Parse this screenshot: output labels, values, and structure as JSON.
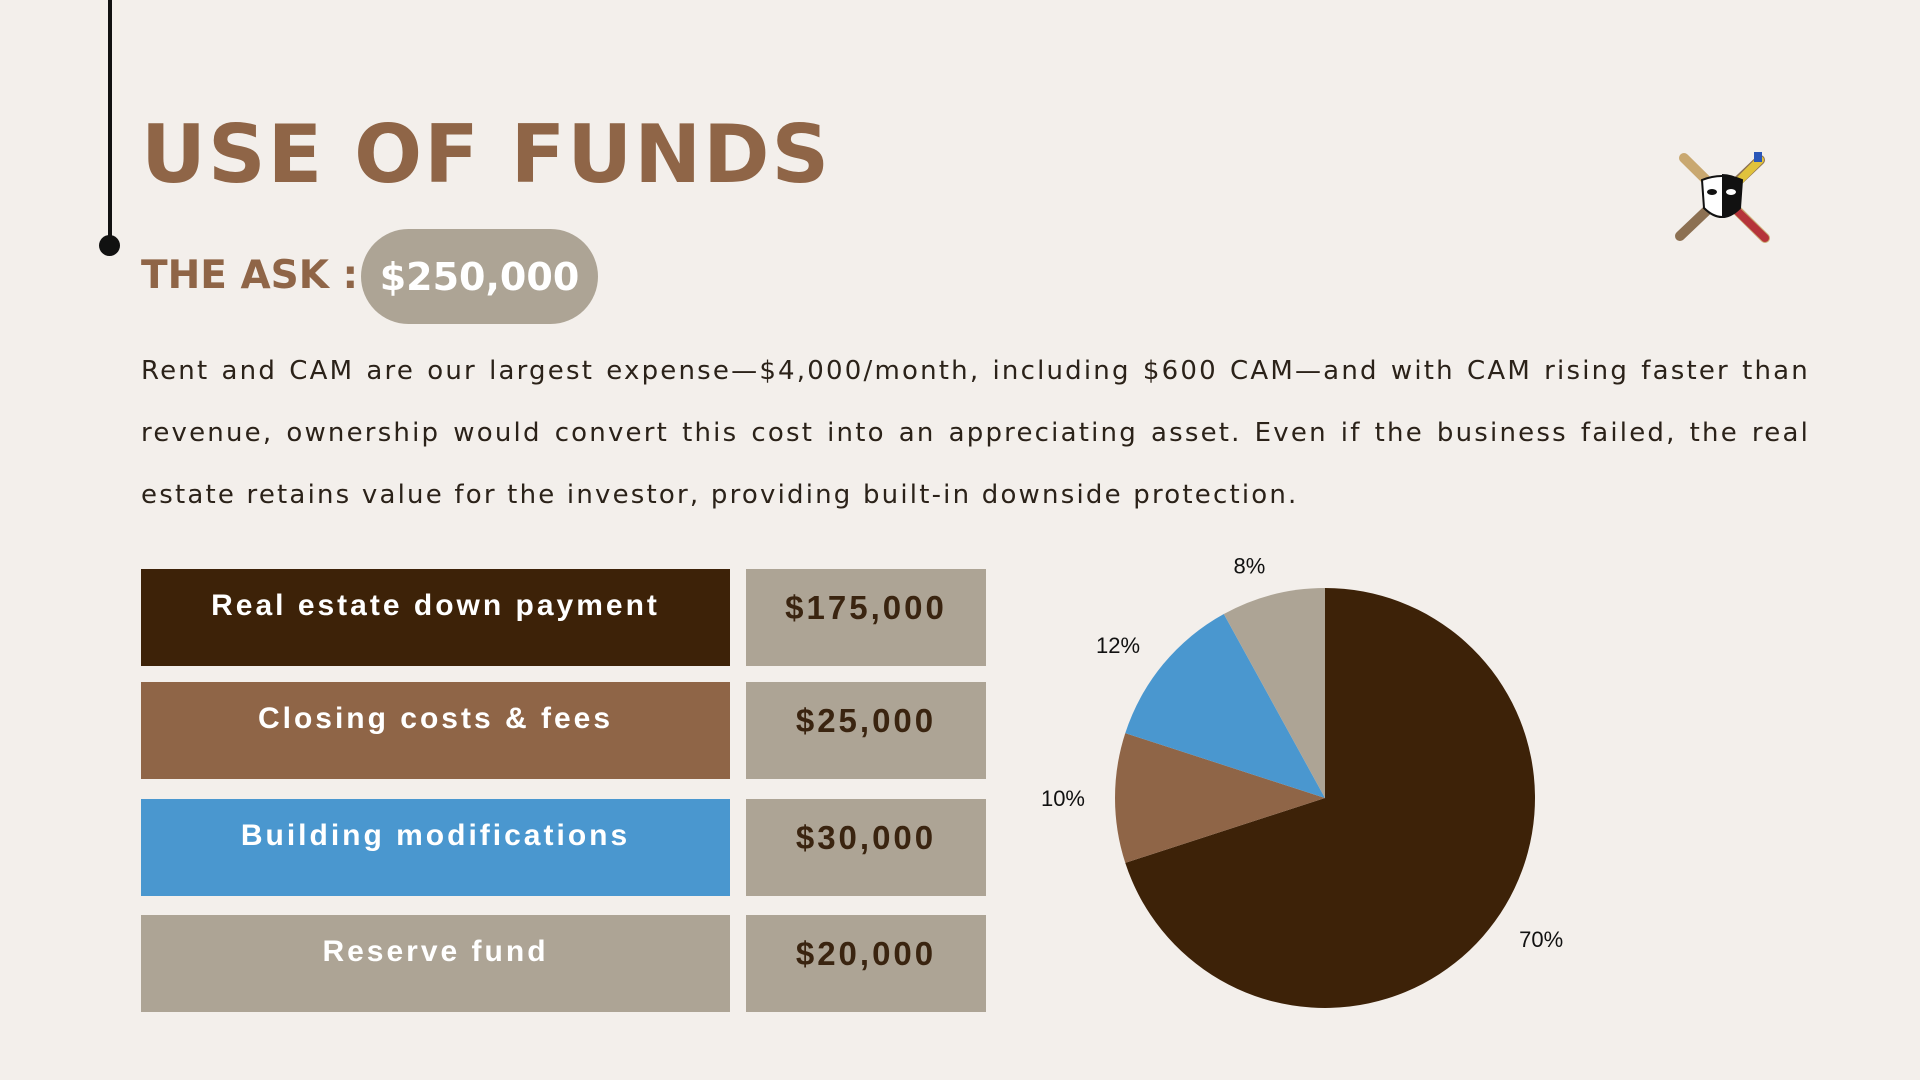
{
  "slide": {
    "title": "USE OF FUNDS",
    "ask_label": "THE ASK :",
    "ask_amount": "$250,000",
    "paragraph": "Rent and CAM are our largest expense—$4,000/month, including $600 CAM—and with CAM rising faster than revenue, ownership would convert this cost into an appreciating asset. Even if the business failed, the real estate retains value for the investor, providing built-in downside protection."
  },
  "funds": [
    {
      "label": "Real estate down payment",
      "amount": "$175,000",
      "color": "#3d2208"
    },
    {
      "label": "Closing costs & fees",
      "amount": "$25,000",
      "color": "#8f6547"
    },
    {
      "label": "Building modifications",
      "amount": "$30,000",
      "color": "#4a97cf"
    },
    {
      "label": "Reserve fund",
      "amount": "$20,000",
      "color": "#ada495"
    }
  ],
  "chart_data": {
    "type": "pie",
    "title": "",
    "slices": [
      {
        "label": "70%",
        "value": 70,
        "color": "#3d2208"
      },
      {
        "label": "10%",
        "value": 10,
        "color": "#8f6547"
      },
      {
        "label": "12%",
        "value": 12,
        "color": "#4a97cf"
      },
      {
        "label": "8%",
        "value": 8,
        "color": "#ada495"
      }
    ]
  },
  "logo": {
    "icon": "theater-mask-crossed-bats-icon"
  }
}
